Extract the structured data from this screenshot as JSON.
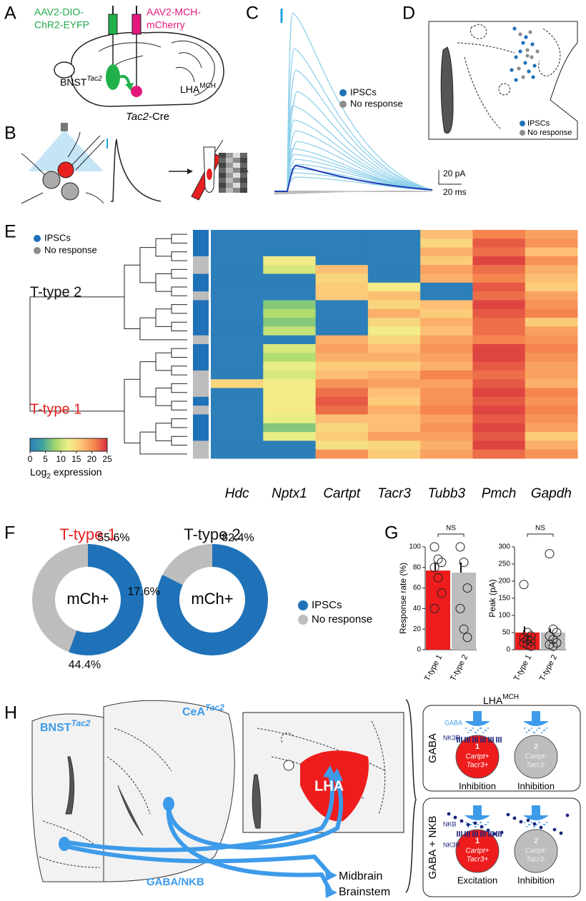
{
  "panels": [
    "A",
    "B",
    "C",
    "D",
    "E",
    "F",
    "G",
    "H"
  ],
  "panel_a": {
    "virus1_l1": "AAV2-DIO-",
    "virus1_l2": "ChR2-EYFP",
    "virus2_l1": "AAV2-MCH-",
    "virus2_l2": "mCherry",
    "bnst": "BNST",
    "bnst_sup": "Tac2",
    "lha": "LHA",
    "lha_sup": "MCH",
    "mouse": "Tac2",
    "mouse_rest": "-Cre"
  },
  "panel_c": {
    "legend": [
      "IPSCs",
      "No response"
    ],
    "scale_y": "20 pA",
    "scale_x": "20 ms"
  },
  "panel_d": {
    "legend": [
      "IPSCs",
      "No response"
    ]
  },
  "panel_h": {
    "bnst": "BNST",
    "bnst_sup": "Tac2",
    "cea": "CeA",
    "cea_sup": "Tac2",
    "lha": "LHA",
    "projection": "GABA/NKB",
    "midbrain": "Midbrain",
    "brainstem": "Brainstem",
    "lha_mch": "LHA",
    "lha_mch_sup": "MCH",
    "gaba_box": "GABA",
    "gaba_nkb_box": "GABA + NKB",
    "gaba_small": "GABA",
    "nk3r": "NK3R",
    "nkb": "NKB",
    "cell1_num": "1",
    "cell1_l1": "Cartpt+",
    "cell1_l2": "Tacr3+",
    "cell2_num": "2",
    "cell2_l1": "Cartpt-",
    "cell2_l2": "Tacr3-",
    "outcomes": [
      "Inhibition",
      "Inhibition",
      "Excitation",
      "Inhibition"
    ]
  },
  "chart_data": [
    {
      "type": "heatmap",
      "legend": [
        {
          "name": "IPSCs",
          "color": "#1f72b8"
        },
        {
          "name": "No response",
          "color": "#bdbdbd"
        }
      ],
      "clusters": [
        {
          "name": "T-type 2",
          "color": "#111111"
        },
        {
          "name": "T-type 1",
          "color": "#e8201f"
        }
      ],
      "categories": [
        "Hdc",
        "Nptx1",
        "Cartpt",
        "Tacr3",
        "Tubb3",
        "Pmch",
        "Gapdh"
      ],
      "row_response": [
        0,
        0,
        0,
        1,
        1,
        0,
        0,
        1,
        0,
        0,
        0,
        0,
        1,
        0,
        0,
        0,
        1,
        1,
        1,
        0,
        1,
        0,
        0,
        0,
        1,
        1
      ],
      "values": [
        [
          0,
          0,
          0,
          0,
          17,
          21,
          19
        ],
        [
          0,
          0,
          0,
          0,
          15,
          23,
          20
        ],
        [
          0,
          0,
          0,
          0,
          18,
          22,
          17
        ],
        [
          0,
          13,
          0,
          0,
          16,
          24,
          20
        ],
        [
          0,
          11,
          17,
          0,
          19,
          22,
          18
        ],
        [
          0,
          0,
          15,
          0,
          18,
          21,
          17
        ],
        [
          0,
          0,
          16,
          13,
          0,
          23,
          16
        ],
        [
          0,
          0,
          16,
          17,
          0,
          22,
          19
        ],
        [
          0,
          7,
          0,
          15,
          17,
          24,
          20
        ],
        [
          0,
          9,
          0,
          18,
          16,
          23,
          21
        ],
        [
          0,
          7,
          0,
          15,
          18,
          22,
          16
        ],
        [
          0,
          10,
          0,
          13,
          17,
          22,
          19
        ],
        [
          0,
          0,
          18,
          15,
          19,
          21,
          20
        ],
        [
          0,
          11,
          19,
          17,
          20,
          24,
          21
        ],
        [
          0,
          9,
          18,
          18,
          19,
          24,
          20
        ],
        [
          0,
          12,
          16,
          16,
          18,
          23,
          19
        ],
        [
          0,
          11,
          17,
          18,
          21,
          22,
          19
        ],
        [
          15,
          13,
          20,
          19,
          19,
          23,
          18
        ],
        [
          0,
          13,
          22,
          17,
          20,
          24,
          21
        ],
        [
          0,
          13,
          23,
          16,
          20,
          23,
          20
        ],
        [
          0,
          13,
          22,
          18,
          21,
          24,
          21
        ],
        [
          0,
          12,
          17,
          17,
          19,
          23,
          20
        ],
        [
          0,
          7,
          15,
          17,
          20,
          24,
          19
        ],
        [
          0,
          12,
          16,
          19,
          19,
          23,
          16
        ],
        [
          0,
          0,
          14,
          15,
          18,
          24,
          18
        ],
        [
          0,
          0,
          20,
          16,
          19,
          22,
          20
        ]
      ],
      "colormap": [
        "#2c7fb8",
        "#3fa4a0",
        "#a6d96a",
        "#f1f08a",
        "#fdc476",
        "#f6874f",
        "#d7303c"
      ],
      "colorbar": {
        "lim": [
          0,
          25
        ],
        "ticks": [
          0,
          5,
          10,
          15,
          20,
          25
        ],
        "label": "Log",
        "label_sub": "2",
        "label_rest": " expression"
      }
    },
    {
      "type": "donut",
      "title": "T-type 1",
      "title_color": "#e8201f",
      "center_label": "mCh+",
      "categories": [
        "IPSCs",
        "No response"
      ],
      "values": [
        55.6,
        44.4
      ],
      "value_labels": [
        "55.6%",
        "44.4%"
      ],
      "colors": [
        "#1f72b8",
        "#bdbdbd"
      ],
      "legend": false
    },
    {
      "type": "donut",
      "title": "T-type 2",
      "title_color": "#111111",
      "center_label": "mCh+",
      "categories": [
        "IPSCs",
        "No response"
      ],
      "values": [
        82.4,
        17.6
      ],
      "value_labels": [
        "82.4%",
        "17.6%"
      ],
      "colors": [
        "#1f72b8",
        "#bdbdbd"
      ],
      "legend": true
    },
    {
      "type": "bar",
      "ylabel": "Response rate (%)",
      "categories": [
        "T-type 1",
        "T-type 2"
      ],
      "values": [
        77,
        75
      ],
      "errors": [
        8,
        10
      ],
      "colors": [
        "#ee1c1c",
        "#bdbdbd"
      ],
      "points": [
        [
          100,
          88,
          85,
          80,
          70,
          55,
          40
        ],
        [
          100,
          85,
          60,
          40,
          20,
          12
        ]
      ],
      "ylim": [
        0,
        100
      ],
      "yticks": [
        0,
        20,
        40,
        60,
        80,
        100
      ],
      "annotation": "NS"
    },
    {
      "type": "bar",
      "ylabel": "Peak (pA)",
      "categories": [
        "T-type 1",
        "T-type 2"
      ],
      "values": [
        50,
        50
      ],
      "errors": [
        18,
        12
      ],
      "colors": [
        "#ee1c1c",
        "#bdbdbd"
      ],
      "points": [
        [
          190,
          50,
          40,
          35,
          30,
          25,
          20,
          15,
          10
        ],
        [
          280,
          60,
          50,
          40,
          30,
          20,
          15,
          10
        ]
      ],
      "ylim": [
        0,
        300
      ],
      "yticks": [
        0,
        50,
        100,
        150,
        200,
        250,
        300
      ],
      "annotation": "NS"
    }
  ]
}
